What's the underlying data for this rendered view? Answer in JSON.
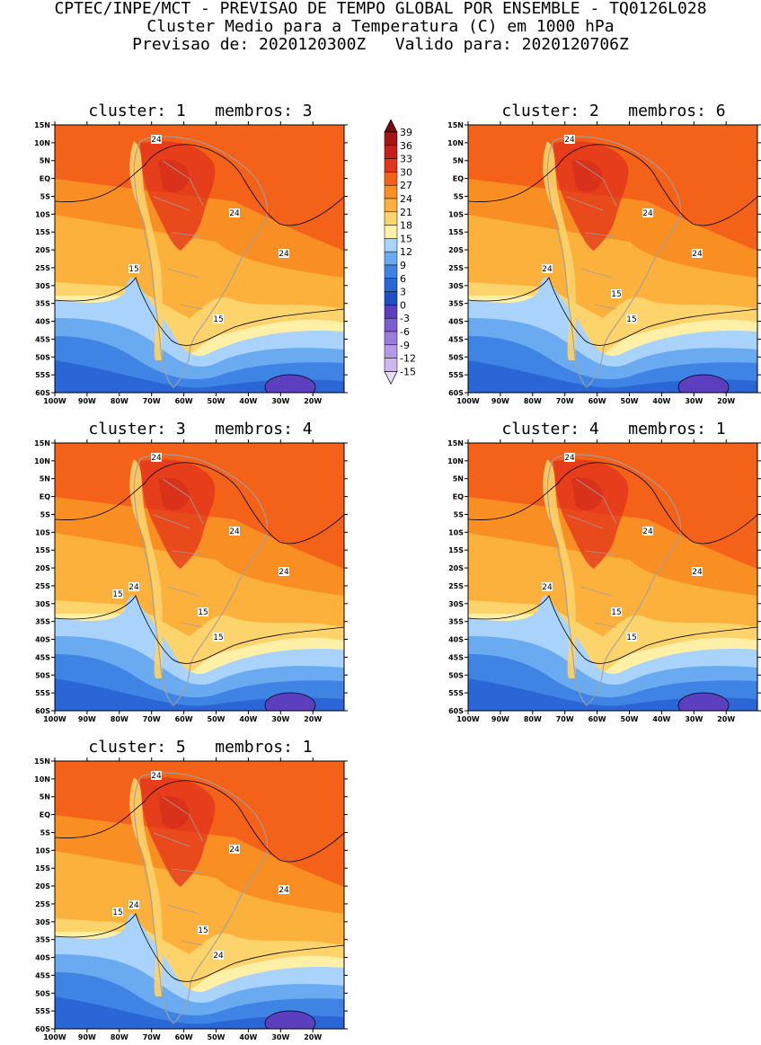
{
  "header": {
    "line1": "CPTEC/INPE/MCT - PREVISAO DE TEMPO GLOBAL POR ENSEMBLE - TQ0126L028",
    "line2": "Cluster Medio para a Temperatura (C) em 1000 hPa",
    "line3": "Previsao de: 2020120300Z   Valido para: 2020120706Z"
  },
  "colors": {
    "n15": "#e8dcf5",
    "n12": "#cdb8ee",
    "n9": "#b49ae4",
    "n6": "#9a7cda",
    "n3": "#7d5ed0",
    "n0": "#5b3fbf",
    "p0": "#1e4fc4",
    "p3": "#2a66d6",
    "p6": "#3f84e4",
    "p9": "#6aaaf0",
    "p12": "#a9d3fb",
    "p15": "#fff0a8",
    "p18": "#fdd36b",
    "p21": "#fbb13b",
    "p24": "#f98e22",
    "p27": "#f4621a",
    "p30": "#e2331b",
    "p33": "#c41e1e",
    "p36": "#a51414",
    "p39": "#7a0b0b",
    "land_outline": "#a0a0a0"
  },
  "colorbar": {
    "labels": [
      "39",
      "36",
      "33",
      "30",
      "27",
      "24",
      "21",
      "18",
      "15",
      "12",
      "9",
      "6",
      "3",
      "0",
      "-3",
      "-6",
      "-9",
      "-12",
      "-15"
    ]
  },
  "axes": {
    "lat_labels": [
      "15N",
      "10N",
      "5N",
      "EQ",
      "5S",
      "10S",
      "15S",
      "20S",
      "25S",
      "30S",
      "35S",
      "40S",
      "45S",
      "50S",
      "55S",
      "60S"
    ],
    "lon_labels": [
      "100W",
      "90W",
      "80W",
      "70W",
      "60W",
      "50W",
      "40W",
      "30W",
      "20W"
    ]
  },
  "panels": [
    {
      "title": "cluster: 1   membros: 3",
      "contour_labels": [
        "24",
        "24",
        "24",
        "15",
        "15"
      ]
    },
    {
      "title": "cluster: 2   membros: 6",
      "contour_labels": [
        "24",
        "24",
        "24",
        "24",
        "15",
        "15"
      ]
    },
    {
      "title": "cluster: 3   membros: 4",
      "contour_labels": [
        "24",
        "24",
        "24",
        "24",
        "15",
        "15",
        "15"
      ]
    },
    {
      "title": "cluster: 4   membros: 1",
      "contour_labels": [
        "24",
        "24",
        "24",
        "24",
        "15",
        "15"
      ]
    },
    {
      "title": "cluster: 5   membros: 1",
      "contour_labels": [
        "24",
        "24",
        "24",
        "24",
        "24",
        "15",
        "15"
      ]
    }
  ]
}
